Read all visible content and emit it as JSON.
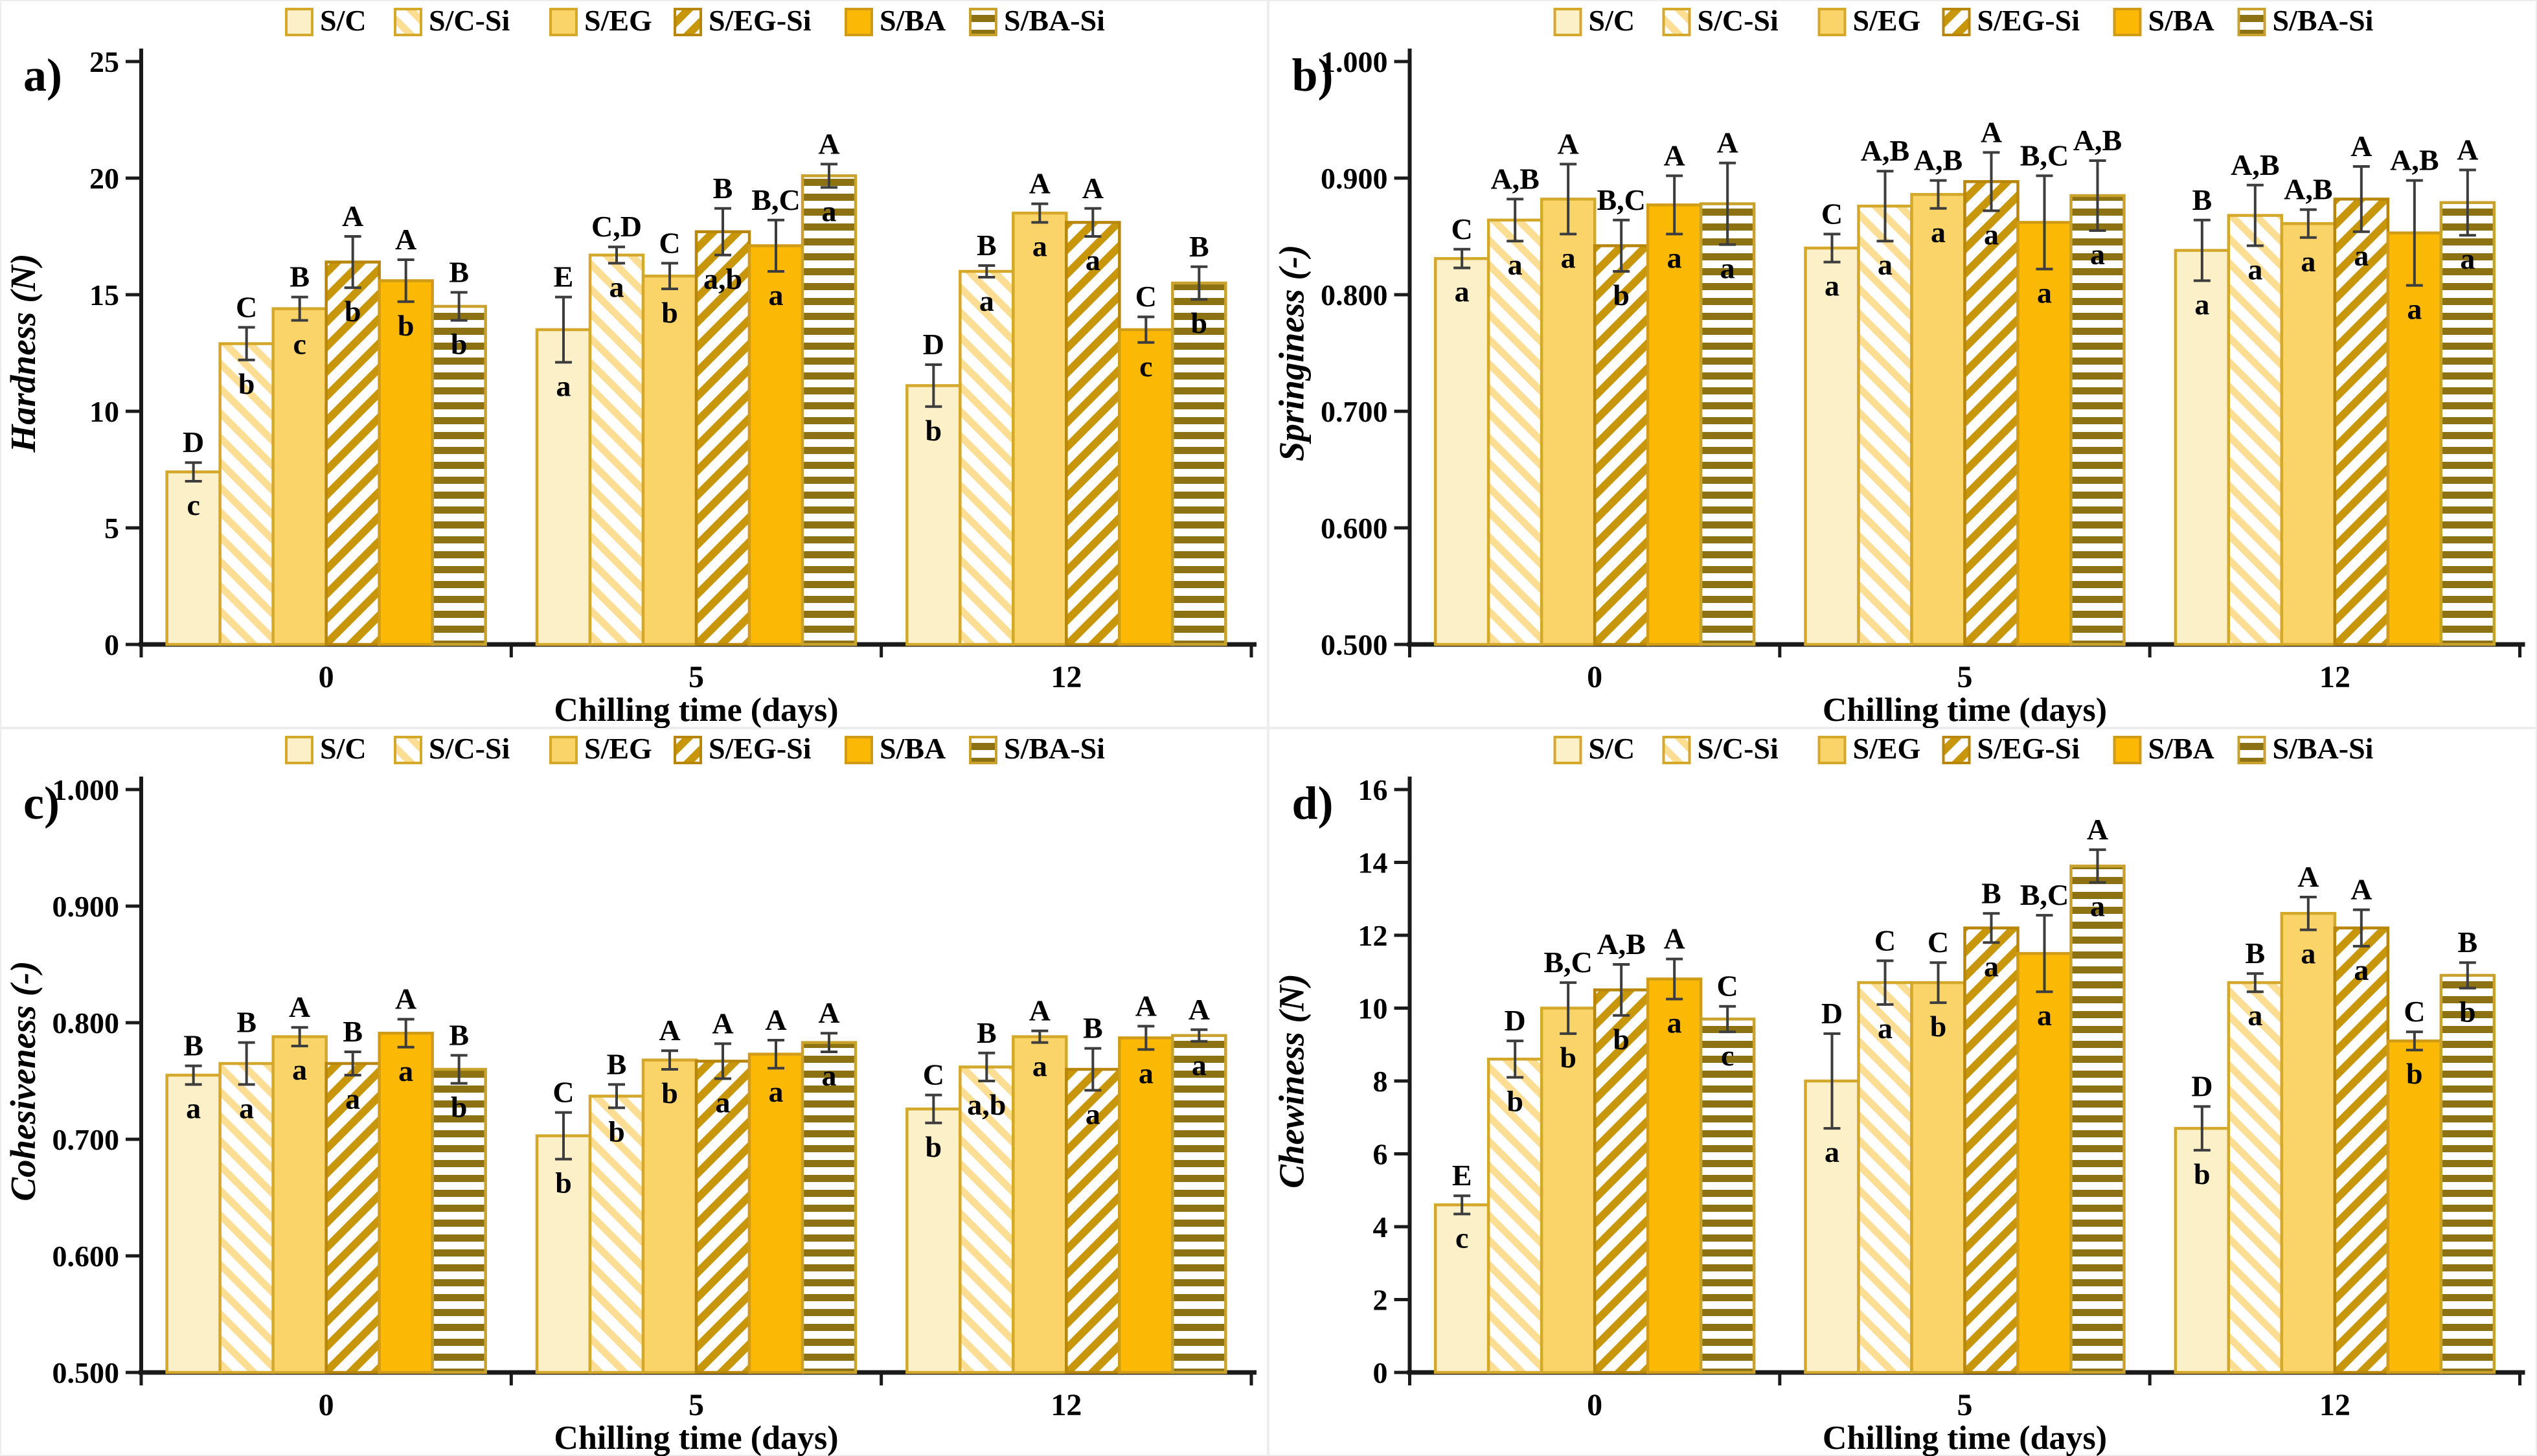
{
  "figure": {
    "x_axis_label": "Chilling time (days)",
    "categories": [
      "0",
      "5",
      "12"
    ],
    "error_bar_color": "#3d3d3d",
    "axis_color": "#1a1a1a"
  },
  "series_styles": [
    {
      "name": "S/C",
      "type": "solid",
      "fill": "#FCF0C8",
      "stroke": "#D4A82B"
    },
    {
      "name": "S/C-Si",
      "type": "diag",
      "color": "#FBDD94",
      "stroke": "#D4A82B",
      "angle": -45,
      "stripe": 11
    },
    {
      "name": "S/EG",
      "type": "solid",
      "fill": "#FAD469",
      "stroke": "#D4A82B"
    },
    {
      "name": "S/EG-Si",
      "type": "diag",
      "color": "#C7960B",
      "stroke": "#B8860B",
      "angle": 45,
      "stripe": 12
    },
    {
      "name": "S/BA",
      "type": "solid",
      "fill": "#FBB905",
      "stroke": "#D09C17"
    },
    {
      "name": "S/BA-Si",
      "type": "horiz",
      "color": "#8C7213",
      "stroke": "#C8A22C",
      "stripe": 11
    }
  ],
  "legend": {
    "labels": [
      "S/C",
      "S/C-Si",
      "S/EG",
      "S/EG-Si",
      "S/BA",
      "S/BA-Si"
    ]
  },
  "chart_data": [
    {
      "id": "a",
      "panel_letter": "a)",
      "type": "bar",
      "ylabel": "Hardness (N)",
      "xlabel": "Chilling time (days)",
      "ylim": [
        0,
        25
      ],
      "ytick_step": 5,
      "ytick_decimals": 0,
      "categories": [
        "0",
        "5",
        "12"
      ],
      "legend_position": "top",
      "grid": false,
      "series": [
        {
          "name": "S/C",
          "values": [
            7.4,
            13.5,
            11.1
          ],
          "errors": [
            0.4,
            1.4,
            0.9
          ],
          "upper_letters": [
            "D",
            "E",
            "D"
          ],
          "lower_letters": [
            "c",
            "a",
            "b"
          ]
        },
        {
          "name": "S/C-Si",
          "values": [
            12.9,
            16.7,
            16.0
          ],
          "errors": [
            0.7,
            0.35,
            0.25
          ],
          "upper_letters": [
            "C",
            "C,D",
            "B"
          ],
          "lower_letters": [
            "b",
            "a",
            "a"
          ]
        },
        {
          "name": "S/EG",
          "values": [
            14.4,
            15.8,
            18.5
          ],
          "errors": [
            0.5,
            0.55,
            0.4
          ],
          "upper_letters": [
            "B",
            "C",
            "A"
          ],
          "lower_letters": [
            "c",
            "b",
            "a"
          ]
        },
        {
          "name": "S/EG-Si",
          "values": [
            16.4,
            17.7,
            18.1
          ],
          "errors": [
            1.1,
            1.0,
            0.6
          ],
          "upper_letters": [
            "A",
            "B",
            "A"
          ],
          "lower_letters": [
            "b",
            "a,b",
            "a"
          ]
        },
        {
          "name": "S/BA",
          "values": [
            15.6,
            17.1,
            13.5
          ],
          "errors": [
            0.9,
            1.1,
            0.55
          ],
          "upper_letters": [
            "A",
            "B,C",
            "C"
          ],
          "lower_letters": [
            "b",
            "a",
            "c"
          ]
        },
        {
          "name": "S/BA-Si",
          "values": [
            14.5,
            20.1,
            15.5
          ],
          "errors": [
            0.6,
            0.5,
            0.7
          ],
          "upper_letters": [
            "B",
            "A",
            "B"
          ],
          "lower_letters": [
            "b",
            "a",
            "b"
          ]
        }
      ]
    },
    {
      "id": "b",
      "panel_letter": "b)",
      "type": "bar",
      "ylabel": "Springiness (-)",
      "xlabel": "Chilling time (days)",
      "ylim": [
        0.5,
        1.0
      ],
      "ytick_step": 0.1,
      "ytick_decimals": 3,
      "categories": [
        "0",
        "5",
        "12"
      ],
      "legend_position": "top",
      "grid": false,
      "series": [
        {
          "name": "S/C",
          "values": [
            0.831,
            0.84,
            0.838
          ],
          "errors": [
            0.008,
            0.012,
            0.026
          ],
          "upper_letters": [
            "C",
            "C",
            "B"
          ],
          "lower_letters": [
            "a",
            "a",
            "a"
          ]
        },
        {
          "name": "S/C-Si",
          "values": [
            0.864,
            0.876,
            0.868
          ],
          "errors": [
            0.018,
            0.03,
            0.026
          ],
          "upper_letters": [
            "A,B",
            "A,B",
            "A,B"
          ],
          "lower_letters": [
            "a",
            "a",
            "a"
          ]
        },
        {
          "name": "S/EG",
          "values": [
            0.882,
            0.886,
            0.861
          ],
          "errors": [
            0.03,
            0.012,
            0.012
          ],
          "upper_letters": [
            "A",
            "A,B",
            "A,B"
          ],
          "lower_letters": [
            "a",
            "a",
            "a"
          ]
        },
        {
          "name": "S/EG-Si",
          "values": [
            0.842,
            0.897,
            0.882
          ],
          "errors": [
            0.022,
            0.025,
            0.028
          ],
          "upper_letters": [
            "B,C",
            "A",
            "A"
          ],
          "lower_letters": [
            "b",
            "a",
            "a"
          ]
        },
        {
          "name": "S/BA",
          "values": [
            0.877,
            0.862,
            0.853
          ],
          "errors": [
            0.025,
            0.04,
            0.045
          ],
          "upper_letters": [
            "A",
            "B,C",
            "A,B"
          ],
          "lower_letters": [
            "a",
            "a",
            "a"
          ]
        },
        {
          "name": "S/BA-Si",
          "values": [
            0.878,
            0.885,
            0.879
          ],
          "errors": [
            0.035,
            0.03,
            0.028
          ],
          "upper_letters": [
            "A",
            "A,B",
            "A"
          ],
          "lower_letters": [
            "a",
            "a",
            "a"
          ]
        }
      ]
    },
    {
      "id": "c",
      "panel_letter": "c)",
      "type": "bar",
      "ylabel": "Cohesiveness (-)",
      "xlabel": "Chilling time (days)",
      "ylim": [
        0.5,
        1.0
      ],
      "ytick_step": 0.1,
      "ytick_decimals": 3,
      "categories": [
        "0",
        "5",
        "12"
      ],
      "legend_position": "top",
      "grid": false,
      "series": [
        {
          "name": "S/C",
          "values": [
            0.755,
            0.703,
            0.726
          ],
          "errors": [
            0.008,
            0.02,
            0.012
          ],
          "upper_letters": [
            "B",
            "C",
            "C"
          ],
          "lower_letters": [
            "a",
            "b",
            "b"
          ]
        },
        {
          "name": "S/C-Si",
          "values": [
            0.765,
            0.737,
            0.762
          ],
          "errors": [
            0.018,
            0.01,
            0.012
          ],
          "upper_letters": [
            "B",
            "B",
            "B"
          ],
          "lower_letters": [
            "a",
            "b",
            "a,b"
          ]
        },
        {
          "name": "S/EG",
          "values": [
            0.788,
            0.768,
            0.788
          ],
          "errors": [
            0.008,
            0.008,
            0.005
          ],
          "upper_letters": [
            "A",
            "A",
            "A"
          ],
          "lower_letters": [
            "a",
            "b",
            "a"
          ]
        },
        {
          "name": "S/EG-Si",
          "values": [
            0.765,
            0.767,
            0.76
          ],
          "errors": [
            0.01,
            0.015,
            0.018
          ],
          "upper_letters": [
            "B",
            "A",
            "B"
          ],
          "lower_letters": [
            "a",
            "a",
            "a"
          ]
        },
        {
          "name": "S/BA",
          "values": [
            0.791,
            0.773,
            0.787
          ],
          "errors": [
            0.012,
            0.012,
            0.01
          ],
          "upper_letters": [
            "A",
            "A",
            "A"
          ],
          "lower_letters": [
            "a",
            "a",
            "a"
          ]
        },
        {
          "name": "S/BA-Si",
          "values": [
            0.76,
            0.783,
            0.789
          ],
          "errors": [
            0.012,
            0.008,
            0.005
          ],
          "upper_letters": [
            "B",
            "A",
            "A"
          ],
          "lower_letters": [
            "b",
            "a",
            "a"
          ]
        }
      ]
    },
    {
      "id": "d",
      "panel_letter": "d)",
      "type": "bar",
      "ylabel": "Chewiness (N)",
      "xlabel": "Chilling time (days)",
      "ylim": [
        0,
        16
      ],
      "ytick_step": 2,
      "ytick_decimals": 0,
      "categories": [
        "0",
        "5",
        "12"
      ],
      "legend_position": "top",
      "grid": false,
      "series": [
        {
          "name": "S/C",
          "values": [
            4.6,
            8.0,
            6.7
          ],
          "errors": [
            0.25,
            1.3,
            0.6
          ],
          "upper_letters": [
            "E",
            "D",
            "D"
          ],
          "lower_letters": [
            "c",
            "a",
            "b"
          ]
        },
        {
          "name": "S/C-Si",
          "values": [
            8.6,
            10.7,
            10.7
          ],
          "errors": [
            0.5,
            0.6,
            0.25
          ],
          "upper_letters": [
            "D",
            "C",
            "B"
          ],
          "lower_letters": [
            "b",
            "a",
            "a"
          ]
        },
        {
          "name": "S/EG",
          "values": [
            10.0,
            10.7,
            12.6
          ],
          "errors": [
            0.7,
            0.55,
            0.45
          ],
          "upper_letters": [
            "B,C",
            "C",
            "A"
          ],
          "lower_letters": [
            "b",
            "b",
            "a"
          ]
        },
        {
          "name": "S/EG-Si",
          "values": [
            10.5,
            12.2,
            12.2
          ],
          "errors": [
            0.7,
            0.4,
            0.5
          ],
          "upper_letters": [
            "A,B",
            "B",
            "A"
          ],
          "lower_letters": [
            "b",
            "a",
            "a"
          ]
        },
        {
          "name": "S/BA",
          "values": [
            10.8,
            11.5,
            9.1
          ],
          "errors": [
            0.55,
            1.05,
            0.25
          ],
          "upper_letters": [
            "A",
            "B,C",
            "C"
          ],
          "lower_letters": [
            "a",
            "a",
            "b"
          ]
        },
        {
          "name": "S/BA-Si",
          "values": [
            9.7,
            13.9,
            10.9
          ],
          "errors": [
            0.35,
            0.45,
            0.35
          ],
          "upper_letters": [
            "C",
            "A",
            "B"
          ],
          "lower_letters": [
            "c",
            "a",
            "b"
          ]
        }
      ]
    }
  ]
}
